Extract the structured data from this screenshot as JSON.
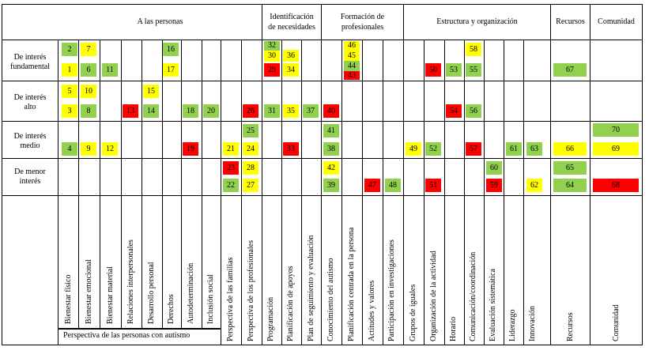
{
  "headers": {
    "personas": "A las personas",
    "identificacion": [
      "Identificación",
      "de necesidades"
    ],
    "formacion": [
      "Formación de",
      "profesionales"
    ],
    "estructura": "Estructura y organización",
    "recursos": "Recursos",
    "comunidad": "Comunidad"
  },
  "rows": [
    [
      "De interés",
      "fundamental"
    ],
    [
      "De interés",
      "alto"
    ],
    [
      "De interés",
      "medio"
    ],
    [
      "De menor",
      "interés"
    ]
  ],
  "columns": [
    "Bienestar físico",
    "Bienestar emocional",
    "Bienestar material",
    "Relaciones interpersonales",
    "Desarrollo personal",
    "Derechos",
    "Autodeterminación",
    "Inclusión social",
    "Perspectiva de las familias",
    "Perspectiva de los profesionales",
    "Programación",
    "Planificación de apoyos",
    "Plan de seguimiento y evaluación",
    "Conocimiento del autismo",
    "Planificación centrada en la persona",
    "Actitudes y valores",
    "Participación en investigaciones",
    "Grupos de iguales",
    "Organización de la actividad",
    "Horario",
    "Comunicación/coordinación",
    "Evaluación sistemática",
    "Liderazgo",
    "Innovación",
    "Recursos",
    "Comunidad"
  ],
  "footer_label": "Perspectiva de las personas con autismo",
  "colors": {
    "green": "#92d050",
    "yellow": "#ffff00",
    "red": "#ff0000"
  },
  "items": [
    {
      "n": "2",
      "color": "green",
      "col": 0,
      "row": 0
    },
    {
      "n": "1",
      "color": "yellow",
      "col": 0,
      "row": 0
    },
    {
      "n": "7",
      "color": "yellow",
      "col": 1,
      "row": 0
    },
    {
      "n": "6",
      "color": "green",
      "col": 1,
      "row": 0
    },
    {
      "n": "11",
      "color": "green",
      "col": 2,
      "row": 0
    },
    {
      "n": "16",
      "color": "green",
      "col": 5,
      "row": 0
    },
    {
      "n": "17",
      "color": "yellow",
      "col": 5,
      "row": 0
    },
    {
      "n": "32",
      "color": "green",
      "col": 10,
      "row": 0
    },
    {
      "n": "30",
      "color": "yellow",
      "col": 10,
      "row": 0
    },
    {
      "n": "29",
      "color": "red",
      "col": 10,
      "row": 0
    },
    {
      "n": "36",
      "color": "yellow",
      "col": 11,
      "row": 0
    },
    {
      "n": "34",
      "color": "yellow",
      "col": 11,
      "row": 0
    },
    {
      "n": "46",
      "color": "yellow",
      "col": 14,
      "row": 0
    },
    {
      "n": "45",
      "color": "yellow",
      "col": 14,
      "row": 0
    },
    {
      "n": "44",
      "color": "green",
      "col": 14,
      "row": 0
    },
    {
      "n": "43",
      "color": "red",
      "col": 14,
      "row": 0
    },
    {
      "n": "50",
      "color": "red",
      "col": 18,
      "row": 0
    },
    {
      "n": "53",
      "color": "green",
      "col": 19,
      "row": 0
    },
    {
      "n": "58",
      "color": "yellow",
      "col": 20,
      "row": 0
    },
    {
      "n": "55",
      "color": "green",
      "col": 20,
      "row": 0
    },
    {
      "n": "67",
      "color": "green",
      "col": 24,
      "row": 0
    },
    {
      "n": "5",
      "color": "yellow",
      "col": 0,
      "row": 1
    },
    {
      "n": "3",
      "color": "yellow",
      "col": 0,
      "row": 1
    },
    {
      "n": "10",
      "color": "yellow",
      "col": 1,
      "row": 1
    },
    {
      "n": "8",
      "color": "green",
      "col": 1,
      "row": 1
    },
    {
      "n": "13",
      "color": "red",
      "col": 3,
      "row": 1
    },
    {
      "n": "15",
      "color": "yellow",
      "col": 4,
      "row": 1
    },
    {
      "n": "14",
      "color": "green",
      "col": 4,
      "row": 1
    },
    {
      "n": "18",
      "color": "green",
      "col": 6,
      "row": 1
    },
    {
      "n": "20",
      "color": "green",
      "col": 7,
      "row": 1
    },
    {
      "n": "26",
      "color": "red",
      "col": 9,
      "row": 1
    },
    {
      "n": "31",
      "color": "green",
      "col": 10,
      "row": 1
    },
    {
      "n": "35",
      "color": "yellow",
      "col": 11,
      "row": 1
    },
    {
      "n": "37",
      "color": "green",
      "col": 12,
      "row": 1
    },
    {
      "n": "40",
      "color": "red",
      "col": 13,
      "row": 1
    },
    {
      "n": "54",
      "color": "red",
      "col": 19,
      "row": 1
    },
    {
      "n": "56",
      "color": "green",
      "col": 20,
      "row": 1
    },
    {
      "n": "4",
      "color": "green",
      "col": 0,
      "row": 2
    },
    {
      "n": "9",
      "color": "yellow",
      "col": 1,
      "row": 2
    },
    {
      "n": "12",
      "color": "yellow",
      "col": 2,
      "row": 2
    },
    {
      "n": "19",
      "color": "red",
      "col": 6,
      "row": 2
    },
    {
      "n": "21",
      "color": "yellow",
      "col": 8,
      "row": 2
    },
    {
      "n": "25",
      "color": "green",
      "col": 9,
      "row": 2
    },
    {
      "n": "24",
      "color": "yellow",
      "col": 9,
      "row": 2
    },
    {
      "n": "33",
      "color": "red",
      "col": 11,
      "row": 2
    },
    {
      "n": "41",
      "color": "green",
      "col": 13,
      "row": 2
    },
    {
      "n": "38",
      "color": "green",
      "col": 13,
      "row": 2
    },
    {
      "n": "49",
      "color": "yellow",
      "col": 17,
      "row": 2
    },
    {
      "n": "52",
      "color": "green",
      "col": 18,
      "row": 2
    },
    {
      "n": "57",
      "color": "red",
      "col": 20,
      "row": 2
    },
    {
      "n": "61",
      "color": "green",
      "col": 22,
      "row": 2
    },
    {
      "n": "63",
      "color": "green",
      "col": 23,
      "row": 2
    },
    {
      "n": "66",
      "color": "yellow",
      "col": 24,
      "row": 2
    },
    {
      "n": "70",
      "color": "green",
      "col": 25,
      "row": 2
    },
    {
      "n": "69",
      "color": "yellow",
      "col": 25,
      "row": 2
    },
    {
      "n": "23",
      "color": "red",
      "col": 8,
      "row": 3
    },
    {
      "n": "22",
      "color": "green",
      "col": 8,
      "row": 3
    },
    {
      "n": "28",
      "color": "yellow",
      "col": 9,
      "row": 3
    },
    {
      "n": "27",
      "color": "yellow",
      "col": 9,
      "row": 3
    },
    {
      "n": "42",
      "color": "yellow",
      "col": 13,
      "row": 3
    },
    {
      "n": "39",
      "color": "green",
      "col": 13,
      "row": 3
    },
    {
      "n": "47",
      "color": "red",
      "col": 15,
      "row": 3
    },
    {
      "n": "48",
      "color": "green",
      "col": 16,
      "row": 3
    },
    {
      "n": "51",
      "color": "red",
      "col": 18,
      "row": 3
    },
    {
      "n": "60",
      "color": "green",
      "col": 21,
      "row": 3
    },
    {
      "n": "59",
      "color": "red",
      "col": 21,
      "row": 3
    },
    {
      "n": "62",
      "color": "yellow",
      "col": 23,
      "row": 3
    },
    {
      "n": "65",
      "color": "green",
      "col": 24,
      "row": 3
    },
    {
      "n": "64",
      "color": "green",
      "col": 24,
      "row": 3
    },
    {
      "n": "68",
      "color": "red",
      "col": 25,
      "row": 3
    }
  ]
}
